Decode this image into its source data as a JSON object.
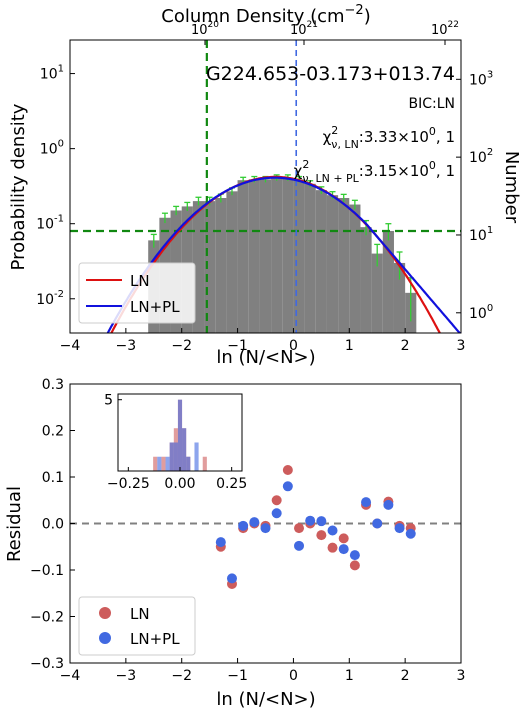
{
  "chart_data": [
    {
      "type": "histogram",
      "top_axis_label": "Column Density (cm$^{-2}$)",
      "top_axis_ticks": [
        {
          "value": 1e+20,
          "label": "10^20"
        },
        {
          "value": 1e+21,
          "label": "10^21"
        },
        {
          "value": 1e+22,
          "label": "10^22"
        }
      ],
      "xlabel": "ln (N/<N>)",
      "ylabel": "Probability density",
      "ylabel_right": "Number",
      "xlim": [
        -4,
        3
      ],
      "ylim": [
        0.0035,
        28
      ],
      "y_scale": "log",
      "ylim_right": [
        0.55,
        3200
      ],
      "x_ticks": [
        -4,
        -3,
        -2,
        -1,
        0,
        1,
        2,
        3
      ],
      "y_ticks": [
        {
          "value": 0.01,
          "label": "10^-2"
        },
        {
          "value": 0.1,
          "label": "10^-1"
        },
        {
          "value": 1,
          "label": "10^0"
        },
        {
          "value": 10,
          "label": "10^1"
        }
      ],
      "y_ticks_right": [
        {
          "value": 1,
          "label": "10^0"
        },
        {
          "value": 10,
          "label": "10^1"
        },
        {
          "value": 100,
          "label": "10^2"
        },
        {
          "value": 1000,
          "label": "10^3"
        }
      ],
      "region_label": "G224.653-03.173+013.74",
      "annotation_bic": "BIC:LN",
      "annotation_chi_ln": {
        "base": "χ",
        "sub": "ν, LN",
        "sup": "2",
        "value": ":3.33×10",
        "exp": "0",
        "tail": ", 1"
      },
      "annotation_chi_lnpl": {
        "base": "χ",
        "sub": "ν, LN + PL",
        "sup": "2",
        "value": ":3.15×10",
        "exp": "0",
        "tail": ", 1"
      },
      "histogram": {
        "bin_width": 0.2,
        "centers": [
          -2.5,
          -2.3,
          -2.1,
          -1.9,
          -1.7,
          -1.5,
          -1.3,
          -1.1,
          -0.9,
          -0.7,
          -0.5,
          -0.3,
          -0.1,
          0.1,
          0.3,
          0.5,
          0.7,
          0.9,
          1.1,
          1.3,
          1.5,
          1.7,
          1.9,
          2.1
        ],
        "density": [
          0.06,
          0.12,
          0.15,
          0.17,
          0.2,
          0.2,
          0.22,
          0.27,
          0.38,
          0.39,
          0.39,
          0.41,
          0.41,
          0.39,
          0.34,
          0.28,
          0.24,
          0.22,
          0.18,
          0.09,
          0.04,
          0.08,
          0.03,
          0.012
        ],
        "errors": [
          0.012,
          0.018,
          0.02,
          0.022,
          0.025,
          0.025,
          0.028,
          0.03,
          0.035,
          0.035,
          0.035,
          0.037,
          0.037,
          0.035,
          0.033,
          0.03,
          0.027,
          0.026,
          0.025,
          0.02,
          0.013,
          0.02,
          0.012,
          0.007
        ],
        "color": "#808080",
        "error_color": "#33cc33"
      },
      "fits": [
        {
          "name": "LN",
          "color": "#dd1111",
          "mu": -0.32,
          "sigma": 0.95,
          "amp": 0.42
        },
        {
          "name": "LN+PL",
          "color": "#1111dd",
          "mu": -0.33,
          "sigma": 0.97,
          "amp": 0.41,
          "alpha": 2.0,
          "break": 1.3
        }
      ],
      "lines": {
        "vertical_green_x": -1.55,
        "horizontal_green_y": 0.08,
        "vertical_blue_x": 0.05,
        "green_color": "#118811",
        "blue_color": "#4169e1"
      },
      "legend": {
        "position": "bottom-left",
        "entries": [
          "LN",
          "LN+PL"
        ]
      }
    },
    {
      "type": "scatter",
      "xlabel": "ln (N/<N>)",
      "ylabel": "Residual",
      "xlim": [
        -4,
        3
      ],
      "ylim": [
        -0.3,
        0.3
      ],
      "x_ticks": [
        -4,
        -3,
        -2,
        -1,
        0,
        1,
        2,
        3
      ],
      "y_ticks": [
        -0.3,
        -0.2,
        -0.1,
        0.0,
        0.1,
        0.2,
        0.3
      ],
      "y_tick_labels": [
        "−0.3",
        "−0.2",
        "−0.1",
        "0.0",
        "0.1",
        "0.2",
        "0.3"
      ],
      "zero_line_color": "#808080",
      "series": [
        {
          "name": "LN",
          "color": "#cd5c5c",
          "points": [
            {
              "x": -1.3,
              "y": -0.05
            },
            {
              "x": -1.1,
              "y": -0.13
            },
            {
              "x": -0.9,
              "y": -0.01
            },
            {
              "x": -0.7,
              "y": 0.0
            },
            {
              "x": -0.5,
              "y": -0.005
            },
            {
              "x": -0.3,
              "y": 0.05
            },
            {
              "x": -0.1,
              "y": 0.115
            },
            {
              "x": 0.1,
              "y": -0.01
            },
            {
              "x": 0.3,
              "y": 0.0
            },
            {
              "x": 0.5,
              "y": -0.025
            },
            {
              "x": 0.7,
              "y": -0.052
            },
            {
              "x": 0.9,
              "y": -0.032
            },
            {
              "x": 1.1,
              "y": -0.09
            },
            {
              "x": 1.3,
              "y": 0.04
            },
            {
              "x": 1.5,
              "y": 0.0
            },
            {
              "x": 1.7,
              "y": 0.047
            },
            {
              "x": 1.9,
              "y": -0.005
            },
            {
              "x": 2.1,
              "y": -0.01
            }
          ]
        },
        {
          "name": "LN+PL",
          "color": "#4169e1",
          "points": [
            {
              "x": -1.3,
              "y": -0.04
            },
            {
              "x": -1.1,
              "y": -0.118
            },
            {
              "x": -0.9,
              "y": -0.005
            },
            {
              "x": -0.7,
              "y": 0.003
            },
            {
              "x": -0.5,
              "y": -0.01
            },
            {
              "x": -0.3,
              "y": 0.022
            },
            {
              "x": -0.1,
              "y": 0.08
            },
            {
              "x": 0.1,
              "y": -0.048
            },
            {
              "x": 0.3,
              "y": 0.006
            },
            {
              "x": 0.5,
              "y": 0.005
            },
            {
              "x": 0.7,
              "y": -0.015
            },
            {
              "x": 0.9,
              "y": -0.055
            },
            {
              "x": 1.1,
              "y": -0.068
            },
            {
              "x": 1.3,
              "y": 0.046
            },
            {
              "x": 1.5,
              "y": 0.0
            },
            {
              "x": 1.7,
              "y": 0.04
            },
            {
              "x": 1.9,
              "y": -0.01
            },
            {
              "x": 2.1,
              "y": -0.022
            }
          ]
        }
      ],
      "inset": {
        "type": "histogram",
        "xlim": [
          -0.3,
          0.3
        ],
        "ylim": [
          0,
          5.4
        ],
        "x_ticks": [
          -0.25,
          0.0,
          0.25
        ],
        "x_tick_labels": [
          "−0.25",
          "0.00",
          "0.25"
        ],
        "y_ticks": [
          0,
          5
        ],
        "y_tick_labels": [
          "",
          "5"
        ],
        "bin_edges": [
          -0.13,
          -0.11,
          -0.09,
          -0.07,
          -0.05,
          -0.03,
          -0.01,
          0.01,
          0.03,
          0.05,
          0.07,
          0.09,
          0.11,
          0.13
        ],
        "series": [
          {
            "name": "LN",
            "color": "#cd5c5c",
            "counts": [
              1,
              0,
              1,
              0,
              2,
              3,
              5,
              3,
              1,
              0,
              0,
              0,
              1
            ]
          },
          {
            "name": "LN+PL",
            "color": "#4169e1",
            "counts": [
              0,
              1,
              0,
              1,
              2,
              2,
              5,
              3,
              1,
              0,
              2,
              0,
              0
            ]
          }
        ]
      },
      "legend": {
        "position": "bottom-left",
        "entries": [
          "LN",
          "LN+PL"
        ]
      }
    }
  ]
}
